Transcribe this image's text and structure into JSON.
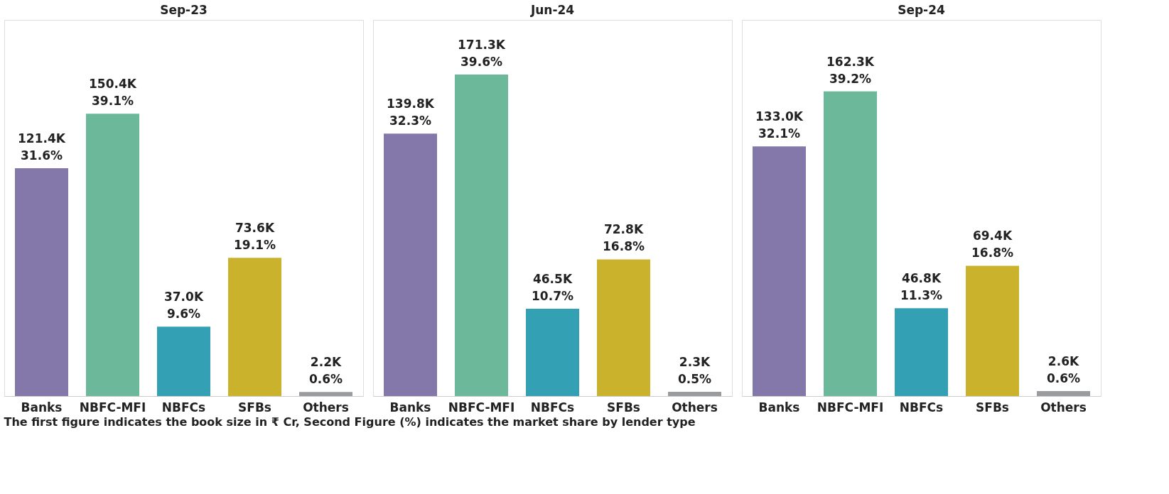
{
  "chart_data": [
    {
      "type": "bar",
      "title": "Sep-23",
      "categories": [
        "Banks",
        "NBFC-MFI",
        "NBFCs",
        "SFBs",
        "Others"
      ],
      "values": [
        121400,
        150400,
        37000,
        73600,
        2200
      ],
      "colors": [
        "#8477aa",
        "#6cb89a",
        "#33a0b4",
        "#cbb22c",
        "#999b9e"
      ],
      "value_labels": [
        "121.4K\n31.6%",
        "150.4K\n39.1%",
        "37.0K\n9.6%",
        "73.6K\n19.1%",
        "2.2K\n0.6%"
      ],
      "annotations": [
        "The first figure indicates the book size in ₹ Cr, Second Figure (%) indicates the market share by lender type"
      ]
    },
    {
      "type": "bar",
      "title": "Jun-24",
      "categories": [
        "Banks",
        "NBFC-MFI",
        "NBFCs",
        "SFBs",
        "Others"
      ],
      "values": [
        139800,
        171300,
        46500,
        72800,
        2300
      ],
      "colors": [
        "#8477aa",
        "#6cb89a",
        "#33a0b4",
        "#cbb22c",
        "#999b9e"
      ],
      "value_labels": [
        "139.8K\n32.3%",
        "171.3K\n39.6%",
        "46.5K\n10.7%",
        "72.8K\n16.8%",
        "2.3K\n0.5%"
      ]
    },
    {
      "type": "bar",
      "title": "Sep-24",
      "categories": [
        "Banks",
        "NBFC-MFI",
        "NBFCs",
        "SFBs",
        "Others"
      ],
      "values": [
        133000,
        162300,
        46800,
        69400,
        2600
      ],
      "colors": [
        "#8477aa",
        "#6cb89a",
        "#33a0b4",
        "#cbb22c",
        "#999b9e"
      ],
      "value_labels": [
        "133.0K\n32.1%",
        "162.3K\n39.2%",
        "46.8K\n11.3%",
        "69.4K\n16.8%",
        "2.6K\n0.6%"
      ]
    }
  ]
}
